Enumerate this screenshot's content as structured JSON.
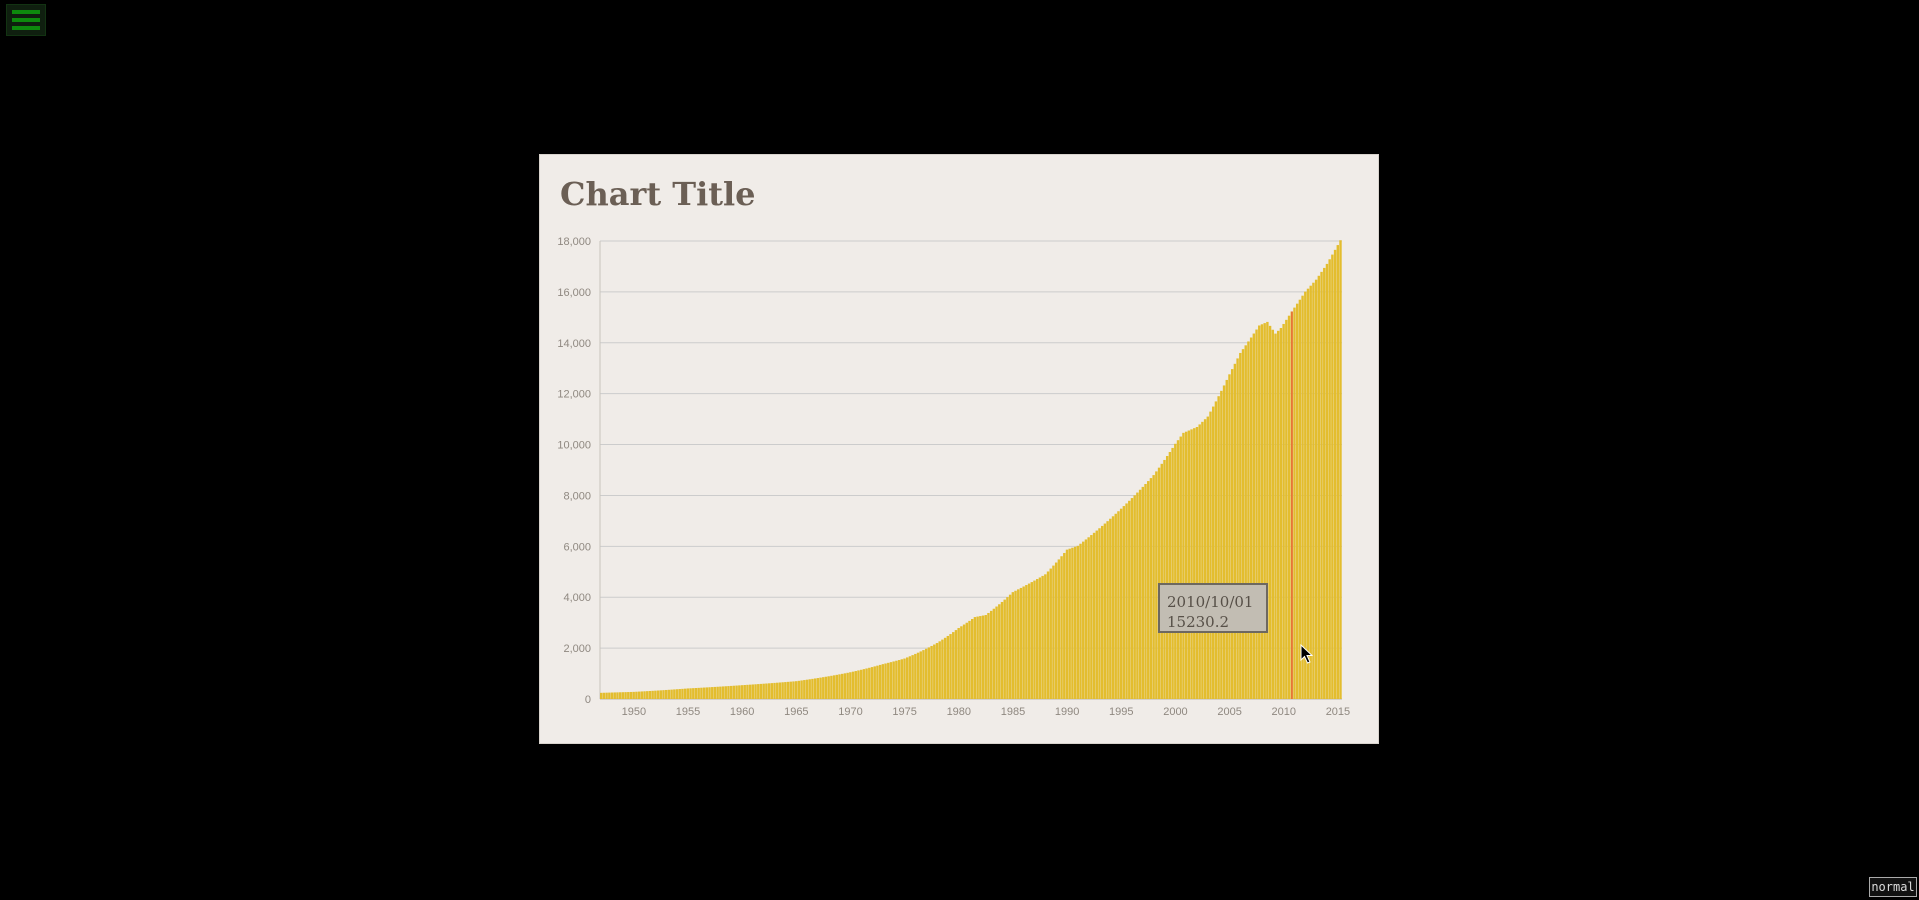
{
  "menu": {
    "icon": "hamburger-menu-icon"
  },
  "mode_badge": "normal",
  "colors": {
    "bar": "#e3bd2e",
    "hover_line": "#e8683a",
    "grid": "#cccccc",
    "background": "#f0ece8"
  },
  "tooltip": {
    "date": "2010/10/01",
    "value": "15230.2"
  },
  "chart_data": {
    "type": "bar",
    "title": "Chart Title",
    "xlabel": "",
    "ylabel": "",
    "ylim": [
      0,
      18000
    ],
    "yticks": [
      "0",
      "2,000",
      "4,000",
      "6,000",
      "8,000",
      "10,000",
      "12,000",
      "14,000",
      "16,000",
      "18,000"
    ],
    "xticks": [
      "1950",
      "1955",
      "1960",
      "1965",
      "1970",
      "1975",
      "1980",
      "1985",
      "1990",
      "1995",
      "2000",
      "2005",
      "2010",
      "2015"
    ],
    "grid": true,
    "frequency": "quarterly",
    "x_start": "1947/01/01",
    "x_end": "2015/04/01",
    "highlight": {
      "x": "2010/10/01",
      "y": 15230.2
    },
    "anchors": [
      [
        "1947/01/01",
        243
      ],
      [
        "1950/01/01",
        280
      ],
      [
        "1955/01/01",
        415
      ],
      [
        "1960/01/01",
        543
      ],
      [
        "1965/01/01",
        700
      ],
      [
        "1970/01/01",
        1051
      ],
      [
        "1973/01/01",
        1370
      ],
      [
        "1975/01/01",
        1590
      ],
      [
        "1978/01/01",
        2200
      ],
      [
        "1980/01/01",
        2790
      ],
      [
        "1981/07/01",
        3220
      ],
      [
        "1982/07/01",
        3300
      ],
      [
        "1985/01/01",
        4200
      ],
      [
        "1988/01/01",
        4900
      ],
      [
        "1990/01/01",
        5870
      ],
      [
        "1991/01/01",
        6020
      ],
      [
        "1995/01/01",
        7480
      ],
      [
        "1998/01/01",
        8800
      ],
      [
        "2000/01/01",
        10030
      ],
      [
        "2000/10/01",
        10460
      ],
      [
        "2002/01/01",
        10690
      ],
      [
        "2003/01/01",
        11100
      ],
      [
        "2005/01/01",
        12760
      ],
      [
        "2006/01/01",
        13600
      ],
      [
        "2007/10/01",
        14680
      ],
      [
        "2008/07/01",
        14820
      ],
      [
        "2009/04/01",
        14360
      ],
      [
        "2009/10/01",
        14580
      ],
      [
        "2010/10/01",
        15230
      ],
      [
        "2012/01/01",
        16010
      ],
      [
        "2013/01/01",
        16480
      ],
      [
        "2014/01/01",
        17100
      ],
      [
        "2015/04/01",
        18030
      ]
    ]
  }
}
